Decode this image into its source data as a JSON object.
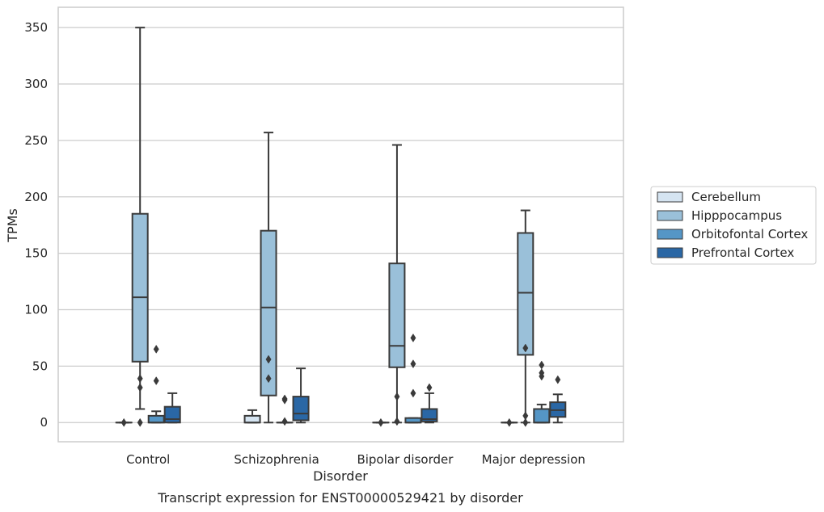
{
  "chart_data": {
    "type": "box",
    "xlabel": "Disorder",
    "ylabel": "TPMs",
    "caption": "Transcript expression for ENST00000529421 by disorder",
    "ylim": [
      -17,
      368
    ],
    "yticks": [
      0,
      50,
      100,
      150,
      200,
      250,
      300,
      350
    ],
    "grid": "horizontal",
    "legend_position": "right",
    "categories": [
      "Control",
      "Schizophrenia",
      "Bipolar disorder",
      "Major depression"
    ],
    "series": [
      {
        "name": "Cerebellum",
        "color": "#d5e4f1",
        "boxes": [
          {
            "q1": 0,
            "median": 0,
            "q3": 0,
            "whislo": 0,
            "whishi": 0,
            "fliers": [
              0
            ]
          },
          {
            "q1": 0,
            "median": 0,
            "q3": 6,
            "whislo": 0,
            "whishi": 11,
            "fliers": []
          },
          {
            "q1": 0,
            "median": 0,
            "q3": 0,
            "whislo": 0,
            "whishi": 0,
            "fliers": [
              0
            ]
          },
          {
            "q1": 0,
            "median": 0,
            "q3": 0,
            "whislo": 0,
            "whishi": 0,
            "fliers": [
              0
            ]
          }
        ]
      },
      {
        "name": "Hipppocampus",
        "color": "#9ac0d9",
        "boxes": [
          {
            "q1": 54,
            "median": 111,
            "q3": 185,
            "whislo": 12,
            "whishi": 350,
            "fliers": [
              39,
              31,
              0
            ]
          },
          {
            "q1": 24,
            "median": 102,
            "q3": 170,
            "whislo": 0,
            "whishi": 257,
            "fliers": [
              56,
              39
            ]
          },
          {
            "q1": 49,
            "median": 68,
            "q3": 141,
            "whislo": 0,
            "whishi": 246,
            "fliers": [
              23,
              1
            ]
          },
          {
            "q1": 60,
            "median": 115,
            "q3": 168,
            "whislo": 0,
            "whishi": 188,
            "fliers": [
              66,
              6,
              0
            ]
          }
        ]
      },
      {
        "name": "Orbitofontal Cortex",
        "color": "#5596c6",
        "boxes": [
          {
            "q1": 0,
            "median": 0,
            "q3": 6,
            "whislo": 0,
            "whishi": 10,
            "fliers": [
              65,
              37
            ]
          },
          {
            "q1": 0,
            "median": 0,
            "q3": 0,
            "whislo": 0,
            "whishi": 0,
            "fliers": [
              21,
              20,
              1
            ]
          },
          {
            "q1": 0,
            "median": 0,
            "q3": 4,
            "whislo": 0,
            "whishi": 4,
            "fliers": [
              75,
              52,
              26
            ]
          },
          {
            "q1": 0,
            "median": 0,
            "q3": 12,
            "whislo": 0,
            "whishi": 16,
            "fliers": [
              51,
              44,
              41
            ]
          }
        ]
      },
      {
        "name": "Prefrontal Cortex",
        "color": "#2a67a5",
        "boxes": [
          {
            "q1": 0,
            "median": 3,
            "q3": 14,
            "whislo": 0,
            "whishi": 26,
            "fliers": []
          },
          {
            "q1": 2,
            "median": 8,
            "q3": 23,
            "whislo": 0,
            "whishi": 48,
            "fliers": []
          },
          {
            "q1": 1,
            "median": 3,
            "q3": 12,
            "whislo": 0,
            "whishi": 26,
            "fliers": [
              31
            ]
          },
          {
            "q1": 5,
            "median": 11,
            "q3": 18,
            "whislo": 0,
            "whishi": 25,
            "fliers": [
              38
            ]
          }
        ]
      }
    ]
  }
}
